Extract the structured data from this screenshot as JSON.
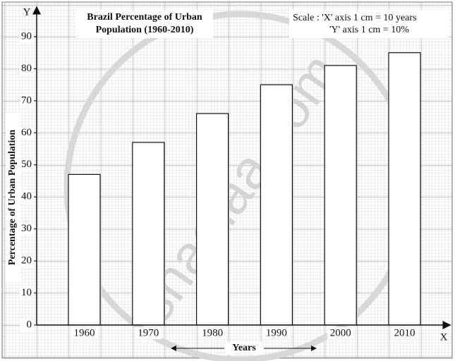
{
  "chart_data": {
    "type": "bar",
    "title_lines": [
      "Brazil Percentage of Urban",
      "Population (1960-2010)"
    ],
    "scale_lines": [
      "Scale : 'X' axis 1 cm = 10 years",
      "'Y' axis 1 cm = 10%"
    ],
    "x_label": "Years",
    "y_label": "Percentage of Urban Population",
    "x_axis_name": "X",
    "y_axis_name": "Y",
    "watermark": "shaalaa.com",
    "categories": [
      "1960",
      "1970",
      "1980",
      "1990",
      "2000",
      "2010"
    ],
    "values": [
      47,
      57,
      66,
      75,
      81,
      85
    ],
    "color": "#ffffff",
    "ylim": [
      0,
      90
    ],
    "yticks": [
      0,
      10,
      20,
      30,
      40,
      50,
      60,
      70,
      80,
      90
    ],
    "grid": true
  }
}
